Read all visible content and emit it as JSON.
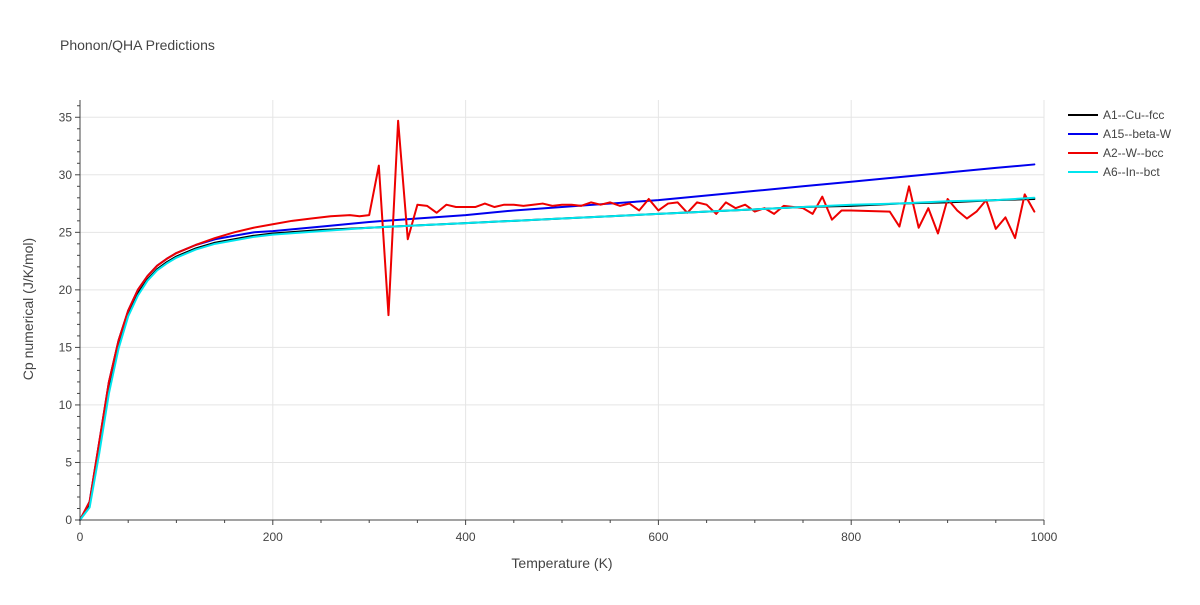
{
  "chart_data": {
    "type": "line",
    "title": "Phonon/QHA Predictions",
    "xlabel": "Temperature (K)",
    "ylabel": "Cp numerical (J/K/mol)",
    "xlim": [
      0,
      1000
    ],
    "ylim": [
      0,
      36.5
    ],
    "x_ticks": [
      0,
      200,
      400,
      600,
      800,
      1000
    ],
    "y_ticks": [
      0,
      5,
      10,
      15,
      20,
      25,
      30,
      35
    ],
    "grid": true,
    "legend_position": "top-right",
    "series": [
      {
        "name": "A1--Cu--fcc",
        "color": "#000000",
        "x": [
          0,
          10,
          20,
          30,
          40,
          50,
          60,
          70,
          80,
          90,
          100,
          120,
          140,
          160,
          180,
          200,
          250,
          300,
          350,
          400,
          450,
          500,
          550,
          600,
          650,
          700,
          750,
          800,
          850,
          900,
          950,
          990
        ],
        "y": [
          0,
          1.3,
          6.2,
          11.4,
          15.2,
          17.9,
          19.7,
          20.9,
          21.8,
          22.4,
          22.9,
          23.6,
          24.1,
          24.4,
          24.7,
          24.9,
          25.2,
          25.4,
          25.6,
          25.8,
          26.0,
          26.2,
          26.4,
          26.6,
          26.8,
          27.0,
          27.2,
          27.3,
          27.5,
          27.6,
          27.8,
          27.9
        ]
      },
      {
        "name": "A15--beta-W",
        "color": "#0000ee",
        "x": [
          0,
          10,
          20,
          30,
          40,
          50,
          60,
          70,
          80,
          90,
          100,
          120,
          140,
          160,
          180,
          200,
          250,
          300,
          350,
          400,
          450,
          500,
          550,
          600,
          650,
          700,
          750,
          800,
          850,
          900,
          950,
          990
        ],
        "y": [
          0,
          1.6,
          6.8,
          12.0,
          15.6,
          18.2,
          20.0,
          21.2,
          22.1,
          22.7,
          23.2,
          23.9,
          24.4,
          24.7,
          25.0,
          25.1,
          25.5,
          25.9,
          26.2,
          26.5,
          26.9,
          27.2,
          27.5,
          27.8,
          28.2,
          28.6,
          29.0,
          29.4,
          29.8,
          30.2,
          30.6,
          30.9
        ]
      },
      {
        "name": "A2--W--bcc",
        "color": "#ee0000",
        "x": [
          0,
          10,
          20,
          30,
          40,
          50,
          60,
          70,
          80,
          90,
          100,
          120,
          140,
          160,
          180,
          200,
          220,
          240,
          260,
          280,
          290,
          300,
          310,
          320,
          330,
          340,
          350,
          360,
          370,
          380,
          390,
          400,
          410,
          420,
          430,
          440,
          450,
          460,
          470,
          480,
          490,
          500,
          510,
          520,
          530,
          540,
          550,
          560,
          570,
          580,
          590,
          600,
          610,
          620,
          630,
          640,
          650,
          660,
          670,
          680,
          690,
          700,
          710,
          720,
          730,
          740,
          750,
          760,
          770,
          780,
          790,
          800,
          840,
          850,
          860,
          870,
          880,
          890,
          900,
          910,
          920,
          930,
          940,
          950,
          960,
          970,
          980,
          990
        ],
        "y": [
          0,
          1.6,
          6.8,
          12.0,
          15.6,
          18.2,
          20.0,
          21.2,
          22.1,
          22.7,
          23.2,
          23.9,
          24.5,
          25.0,
          25.4,
          25.7,
          26.0,
          26.2,
          26.4,
          26.5,
          26.4,
          26.5,
          30.8,
          17.8,
          34.7,
          24.4,
          27.4,
          27.3,
          26.7,
          27.4,
          27.2,
          27.2,
          27.2,
          27.5,
          27.2,
          27.4,
          27.4,
          27.3,
          27.4,
          27.5,
          27.3,
          27.4,
          27.4,
          27.3,
          27.6,
          27.4,
          27.6,
          27.3,
          27.5,
          26.9,
          27.9,
          26.9,
          27.5,
          27.6,
          26.7,
          27.6,
          27.4,
          26.6,
          27.6,
          27.1,
          27.4,
          26.8,
          27.1,
          26.6,
          27.3,
          27.2,
          27.1,
          26.6,
          28.1,
          26.1,
          26.9,
          26.9,
          26.8,
          25.5,
          29.0,
          25.4,
          27.1,
          24.9,
          27.9,
          26.9,
          26.2,
          26.8,
          27.8,
          25.3,
          26.3,
          24.5,
          28.3,
          26.8
        ]
      },
      {
        "name": "A6--In--bct",
        "color": "#00e5ee",
        "x": [
          0,
          10,
          20,
          30,
          40,
          50,
          60,
          70,
          80,
          90,
          100,
          120,
          140,
          160,
          180,
          200,
          250,
          300,
          350,
          400,
          450,
          500,
          550,
          600,
          650,
          700,
          750,
          800,
          850,
          900,
          950,
          990
        ],
        "y": [
          0,
          1.1,
          5.8,
          11.0,
          14.9,
          17.7,
          19.5,
          20.8,
          21.7,
          22.3,
          22.8,
          23.5,
          24.0,
          24.3,
          24.6,
          24.8,
          25.1,
          25.4,
          25.6,
          25.8,
          26.0,
          26.2,
          26.4,
          26.6,
          26.8,
          27.0,
          27.2,
          27.4,
          27.5,
          27.7,
          27.8,
          28.0
        ]
      }
    ]
  }
}
